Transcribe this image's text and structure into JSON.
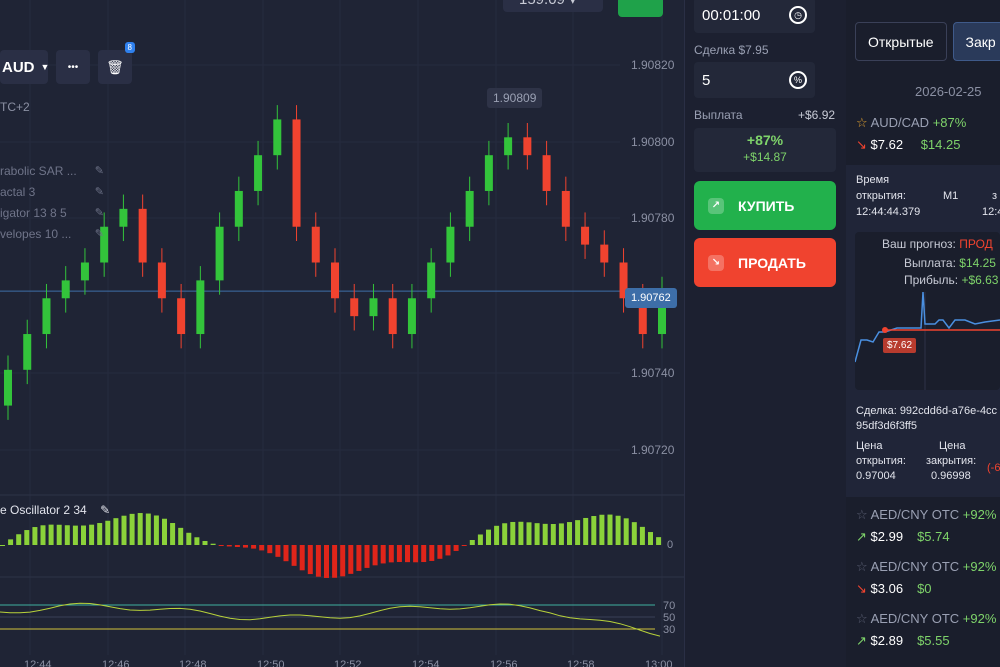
{
  "chart": {
    "pair_label": "AUD",
    "more_label": "•••",
    "delete_badge": "8",
    "timezone": "TC+2",
    "top_chip": "159.09 ▾",
    "indicators": [
      {
        "label": "rabolic SAR ..."
      },
      {
        "label": "actal 3"
      },
      {
        "label": "igator 13 8 5"
      },
      {
        "label": "velopes 10 ..."
      }
    ],
    "price_ticks": [
      "1.90820",
      "1.90800",
      "1.90780",
      "1.90740",
      "1.90720"
    ],
    "hover_price": "1.90809",
    "current_price": "1.90762",
    "osc_title": "e Oscillator  2 34",
    "osc_zero": "0",
    "rsi_levels": [
      "70",
      "50",
      "30"
    ],
    "time_ticks": [
      "12:44",
      "12:46",
      "12:48",
      "12:50",
      "12:52",
      "12:54",
      "12:56",
      "12:58",
      "13:00"
    ]
  },
  "chart_data": {
    "type": "candlestick",
    "y_axis_ticks": [
      1.9082,
      1.908,
      1.9078,
      1.9074,
      1.9072
    ],
    "x_axis_ticks": [
      "12:44",
      "12:46",
      "12:48",
      "12:50",
      "12:52",
      "12:54",
      "12:56",
      "12:58",
      "13:00"
    ],
    "current_price": 1.90762,
    "hover_price": 1.90809,
    "close_series": [
      1.9074,
      1.9075,
      1.9076,
      1.90765,
      1.9077,
      1.9078,
      1.90785,
      1.9077,
      1.9076,
      1.9075,
      1.90765,
      1.9078,
      1.9079,
      1.908,
      1.9081,
      1.9078,
      1.9077,
      1.9076,
      1.90755,
      1.9076,
      1.9075,
      1.9076,
      1.9077,
      1.9078,
      1.9079,
      1.908,
      1.90805,
      1.908,
      1.9079,
      1.9078,
      1.90775,
      1.9077,
      1.9076,
      1.9075,
      1.90762
    ]
  },
  "trade": {
    "time_value": "00:01:00",
    "amount_label": "Сделка $7.95",
    "amount_value": "5",
    "percent_icon": "%",
    "payout_label": "Выплата",
    "payout_value": "+$6.92",
    "payout_pct": "+87%",
    "payout_amount": "+$14.87",
    "buy_label": "КУПИТЬ",
    "sell_label": "ПРОДАТЬ"
  },
  "trades_panel": {
    "tab_open": "Открытые",
    "tab_closed": "Закр",
    "date": "2026-02-25",
    "active_pair": "AUD/CAD",
    "active_pct": "+87%",
    "active_amount": "$7.62",
    "active_win": "$14.25",
    "detail": {
      "time_label": "Время",
      "open_label": "открытия:",
      "open_time": "12:44:44.379",
      "timeframe": "M1",
      "close_partial": "з",
      "close_partial_time": "12:4",
      "forecast_label": "Ваш прогноз:",
      "forecast_value": "ПРОД",
      "payout_label": "Выплата:",
      "payout_value": "$14.25",
      "profit_label": "Прибыль:",
      "profit_value": "+$6.63",
      "marker": "$7.62",
      "deal_label": "Сделка: 992cdd6d-a76e-4cc",
      "deal_id2": "95df3d6f3ff5",
      "price_label": "Цена",
      "open_price_label": "открытия:",
      "open_price": "0.97004",
      "close_price_label": "закрытия:",
      "close_price": "0.96998",
      "diff": "(-6"
    },
    "history": [
      {
        "pair": "AED/CNY OTC",
        "pct": "+92%",
        "amount": "$2.99",
        "payout": "$5.74",
        "direction": "up"
      },
      {
        "pair": "AED/CNY OTC",
        "pct": "+92%",
        "amount": "$3.06",
        "payout": "$0",
        "direction": "down"
      },
      {
        "pair": "AED/CNY OTC",
        "pct": "+92%",
        "amount": "$2.89",
        "payout": "$5.55",
        "direction": "up"
      }
    ],
    "colors": {
      "green": "#7ed36a",
      "red": "#f0432f",
      "star": "#e0a030"
    }
  }
}
